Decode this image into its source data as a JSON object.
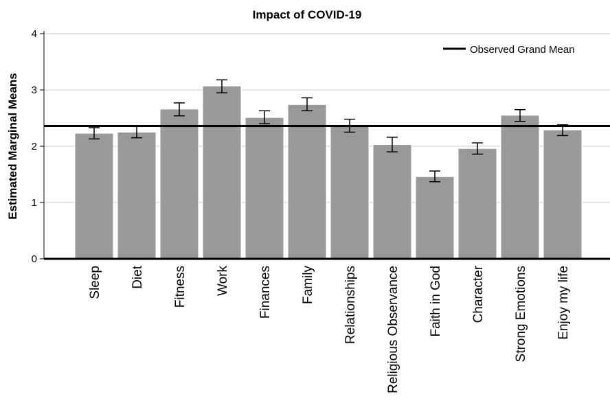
{
  "chart_data": {
    "type": "bar",
    "title": "Impact of COVID-19",
    "xlabel": "",
    "ylabel": "Estimated Marginal Means",
    "ylim": [
      0,
      4
    ],
    "yticks": [
      0,
      1,
      2,
      3,
      4
    ],
    "grid": true,
    "categories": [
      "Sleep",
      "Diet",
      "Fitness",
      "Work",
      "Finances",
      "Family",
      "Relationships",
      "Religious Observance",
      "Faith in God",
      "Character",
      "Strong Emotions",
      "Enjoy my life"
    ],
    "values": [
      2.23,
      2.25,
      2.66,
      3.07,
      2.51,
      2.74,
      2.37,
      2.03,
      1.46,
      1.96,
      2.55,
      2.29
    ],
    "error_low": [
      2.13,
      2.15,
      2.54,
      2.95,
      2.4,
      2.63,
      2.25,
      1.9,
      1.37,
      1.86,
      2.44,
      2.19
    ],
    "error_high": [
      2.33,
      2.35,
      2.77,
      3.18,
      2.63,
      2.86,
      2.48,
      2.16,
      1.56,
      2.06,
      2.65,
      2.38
    ],
    "reference_line": {
      "name": "Observed Grand Mean",
      "value": 2.36
    },
    "legend_position": "top-right",
    "colors": {
      "bar": "#999999",
      "bar_edge": "#ffffff",
      "reference_line": "#000000",
      "grid": "#c8c8c8",
      "axis": "#000000"
    }
  }
}
